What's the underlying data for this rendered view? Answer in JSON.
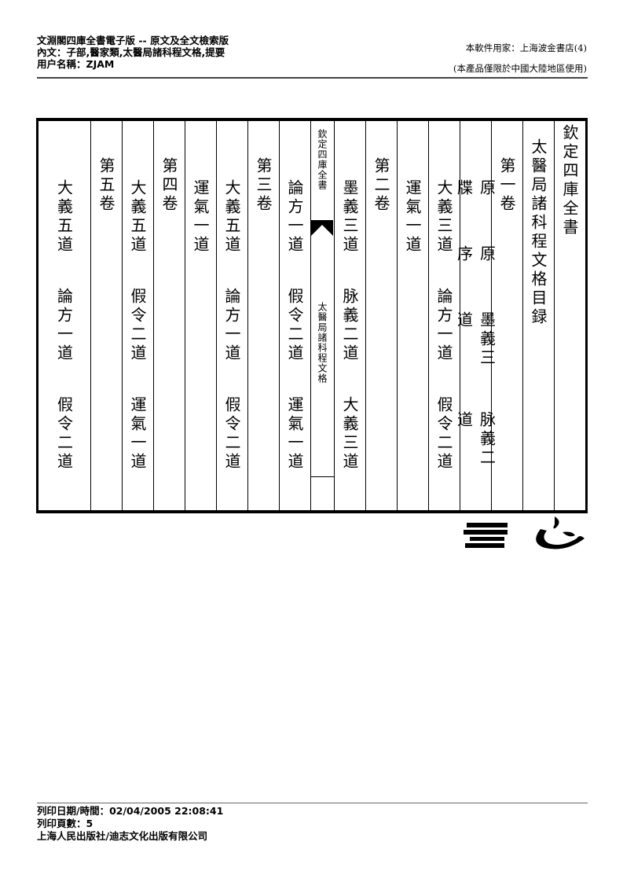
{
  "header": {
    "line1": "文淵閣四庫全書電子版 -- 原文及全文檢索版",
    "line2": "內文：子部,醫家類,太醫局諸科程文格,提要",
    "line3": "用户名稱：ZJAM",
    "licensee": "本軟件用家：上海波金書店(4)",
    "restriction": "(本產品僅限於中國大陸地區使用)"
  },
  "page": {
    "columns": [
      {
        "pad": 4,
        "items": [
          "欽定四庫全書"
        ]
      },
      {
        "pad": 22,
        "items": [
          "太醫局諸科程文格目録"
        ]
      },
      {
        "pad": 46,
        "items": [
          "第一卷"
        ]
      },
      {
        "pad": 74,
        "items": [
          "原牒",
          "原序",
          "墨義三道",
          "脉義二道"
        ]
      },
      {
        "pad": 74,
        "items": [
          "大義三道",
          "論方一道",
          "假令二道"
        ]
      },
      {
        "pad": 74,
        "items": [
          "運氣一道"
        ]
      },
      {
        "pad": 46,
        "items": [
          "第二卷"
        ]
      },
      {
        "pad": 74,
        "items": [
          "墨義三道",
          "脉義二道",
          "大義三道"
        ]
      },
      {
        "center": true,
        "top": "欽定四庫全書",
        "bottom": "太醫局諸科程文格"
      },
      {
        "pad": 74,
        "items": [
          "論方一道",
          "假令二道",
          "運氣一道"
        ]
      },
      {
        "pad": 46,
        "items": [
          "第三卷"
        ]
      },
      {
        "pad": 74,
        "items": [
          "大義五道",
          "論方一道",
          "假令二道"
        ]
      },
      {
        "pad": 74,
        "items": [
          "運氣一道"
        ]
      },
      {
        "pad": 46,
        "items": [
          "第四卷"
        ]
      },
      {
        "pad": 74,
        "items": [
          "大義五道",
          "假令二道",
          "運氣一道"
        ]
      },
      {
        "pad": 46,
        "items": [
          "第五卷"
        ]
      },
      {
        "pad": 74,
        "items": [
          "大義五道",
          "論方一道",
          "假令二道"
        ]
      }
    ]
  },
  "footer": {
    "print_datetime": "列印日期/時間：02/04/2005 22:08:41",
    "print_pages": "列印頁數：5",
    "publisher": "上海人民出版社/迪志文化出版有限公司"
  }
}
